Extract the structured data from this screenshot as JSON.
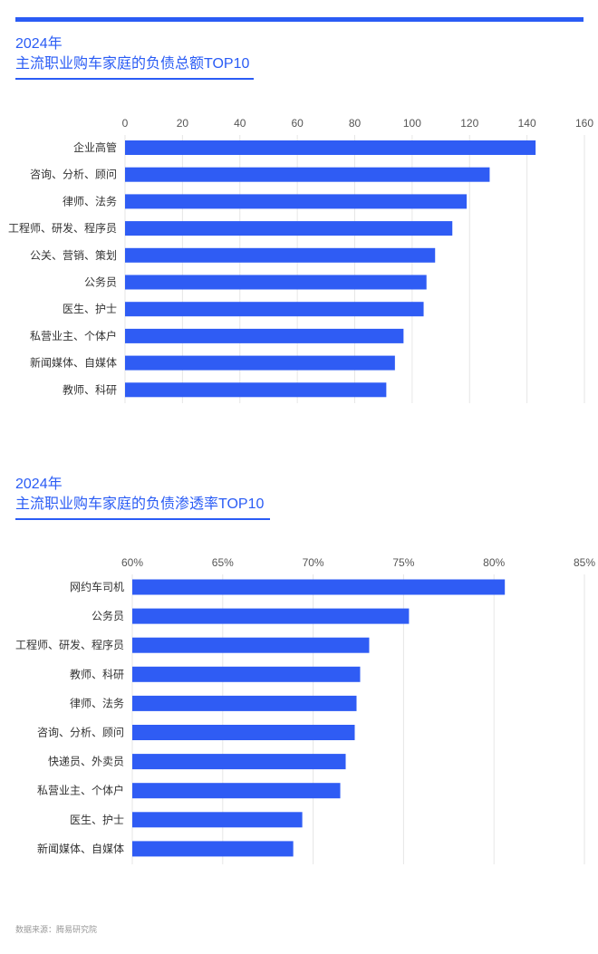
{
  "colors": {
    "accent": "#2a5cf5",
    "bar": "#2f5cf4",
    "grid": "#e6e6e6"
  },
  "section1": {
    "year": "2024年",
    "title": "主流职业购车家庭的负债总额TOP10"
  },
  "section2": {
    "year": "2024年",
    "title": "主流职业购车家庭的负债渗透率TOP10"
  },
  "footer": {
    "source": "数据来源：腾易研究院"
  },
  "chart_data": [
    {
      "type": "bar",
      "orientation": "horizontal",
      "title": "主流职业购车家庭的负债总额TOP10",
      "categories": [
        "企业高管",
        "咨询、分析、顾问",
        "律师、法务",
        "工程师、研发、程序员",
        "公关、营销、策划",
        "公务员",
        "医生、护士",
        "私营业主、个体户",
        "新闻媒体、自媒体",
        "教师、科研"
      ],
      "values": [
        143,
        127,
        119,
        114,
        108,
        105,
        104,
        97,
        94,
        91
      ],
      "xlim": [
        0,
        160
      ],
      "ticks": [
        "0",
        "20",
        "40",
        "60",
        "80",
        "100",
        "120",
        "140",
        "160"
      ],
      "tick_values": [
        0,
        20,
        40,
        60,
        80,
        100,
        120,
        140,
        160
      ],
      "grid": true
    },
    {
      "type": "bar",
      "orientation": "horizontal",
      "title": "主流职业购车家庭的负债渗透率TOP10",
      "categories": [
        "网约车司机",
        "公务员",
        "工程师、研发、程序员",
        "教师、科研",
        "律师、法务",
        "咨询、分析、顾问",
        "快递员、外卖员",
        "私营业主、个体户",
        "医生、护士",
        "新闻媒体、自媒体"
      ],
      "values": [
        80.6,
        75.3,
        73.1,
        72.6,
        72.4,
        72.3,
        71.8,
        71.5,
        69.4,
        68.9
      ],
      "xlim": [
        60,
        85
      ],
      "ticks": [
        "60%",
        "65%",
        "70%",
        "75%",
        "80%",
        "85%"
      ],
      "tick_values": [
        60,
        65,
        70,
        75,
        80,
        85
      ],
      "grid": true
    }
  ]
}
